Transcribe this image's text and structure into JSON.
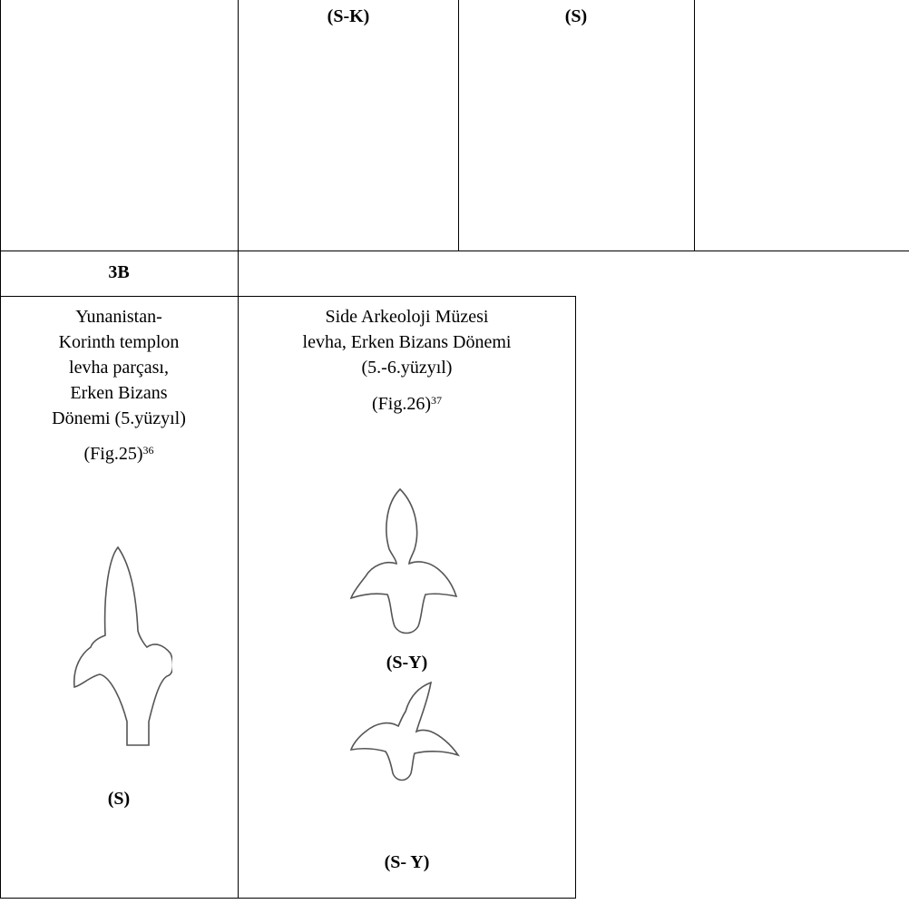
{
  "header_row": {
    "cells": [
      "(S-K)",
      "(S)"
    ]
  },
  "section_label": "3B",
  "items": [
    {
      "lines": [
        "Yunanistan-",
        "Korinth templon",
        "levha parçası,",
        "Erken Bizans",
        "Dönemi (5.yüzyıl)"
      ],
      "figure": "(Fig.25)",
      "footnote": "36",
      "labels": [
        "(S)"
      ]
    },
    {
      "lines": [
        "Side Arkeoloji Müzesi",
        "levha, Erken Bizans Dönemi",
        "(5.-6.yüzyıl)"
      ],
      "figure": "(Fig.26)",
      "footnote": "37",
      "labels": [
        "(S-Y)",
        "(S- Y)"
      ]
    }
  ]
}
